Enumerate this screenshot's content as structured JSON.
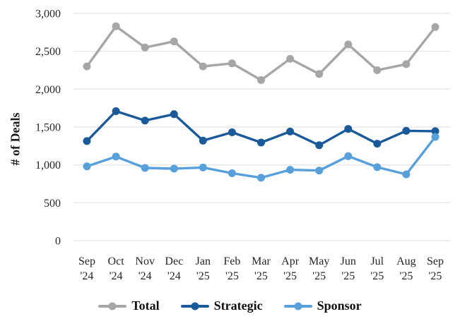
{
  "chart_data": {
    "type": "line",
    "title": "",
    "ylabel": "# of Deals",
    "xlabel": "",
    "ylim": [
      0,
      3000
    ],
    "y_ticks": [
      0,
      500,
      1000,
      1500,
      2000,
      2500,
      3000
    ],
    "y_tick_labels": [
      "0",
      "500",
      "1,000",
      "1,500",
      "2,000",
      "2,500",
      "3,000"
    ],
    "grid": true,
    "legend_position": "bottom",
    "categories": [
      "Sep '24",
      "Oct '24",
      "Nov '24",
      "Dec '24",
      "Jan '25",
      "Feb '25",
      "Mar '25",
      "Apr '25",
      "May '25",
      "Jun '25",
      "Jul '25",
      "Aug '25",
      "Sep '25"
    ],
    "series": [
      {
        "name": "Total",
        "color": "#a6a6a6",
        "values": [
          2300,
          2830,
          2550,
          2630,
          2300,
          2340,
          2120,
          2400,
          2200,
          2590,
          2250,
          2330,
          2820
        ]
      },
      {
        "name": "Strategic",
        "color": "#1a5a9a",
        "values": [
          1315,
          1710,
          1585,
          1670,
          1320,
          1430,
          1295,
          1440,
          1260,
          1475,
          1280,
          1450,
          1445
        ]
      },
      {
        "name": "Sponsor",
        "color": "#58a0dc",
        "values": [
          980,
          1110,
          960,
          950,
          965,
          890,
          830,
          935,
          925,
          1115,
          970,
          875,
          1370
        ]
      }
    ],
    "colors": {
      "gridline": "#dedede",
      "axis_text": "#262626",
      "legend_text": "#111111"
    }
  }
}
